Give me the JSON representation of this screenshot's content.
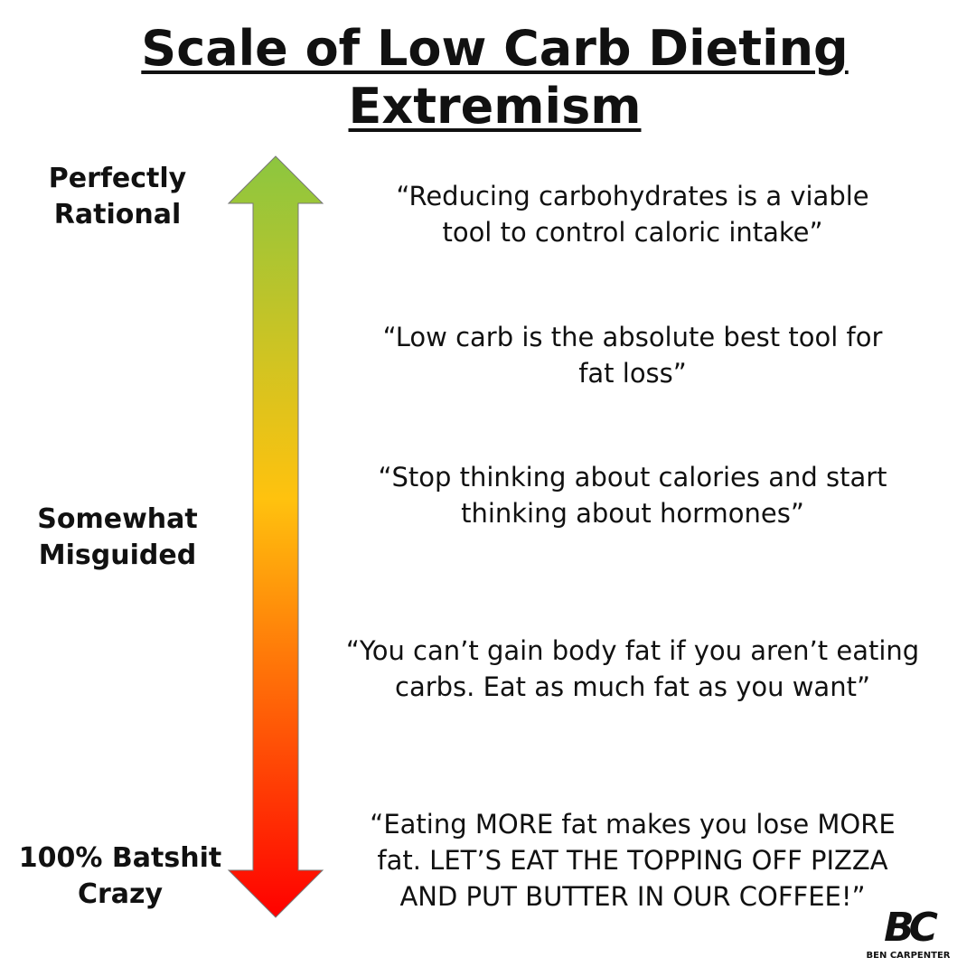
{
  "title": {
    "lines": [
      "Scale of Low Carb Dieting",
      "Extremism"
    ]
  },
  "scale_labels": [
    {
      "lines": [
        "Perfectly",
        "Rational"
      ]
    },
    {
      "lines": [
        "Somewhat",
        "Misguided"
      ]
    },
    {
      "lines": [
        "100% Batshit",
        "Crazy"
      ]
    }
  ],
  "quotes": [
    {
      "lines": [
        "“Reducing carbohydrates is a viable",
        "tool to control caloric intake”"
      ]
    },
    {
      "lines": [
        "“Low carb is the absolute best tool for",
        "fat loss”"
      ]
    },
    {
      "lines": [
        "“Stop thinking about calories and start",
        "thinking about hormones”"
      ]
    },
    {
      "lines": [
        "“You can’t gain body fat if you aren’t eating",
        "carbs. Eat as much fat as you want”"
      ]
    },
    {
      "lines": [
        "“Eating MORE fat makes you lose MORE",
        "fat. LET’S EAT THE TOPPING OFF PIZZA",
        "AND PUT BUTTER IN OUR COFFEE!”"
      ]
    }
  ],
  "logo": {
    "mark": "BC",
    "name": "BEN CARPENTER"
  }
}
